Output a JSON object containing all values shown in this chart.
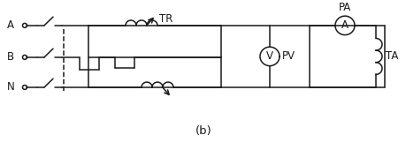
{
  "fig_width": 4.6,
  "fig_height": 1.7,
  "dpi": 100,
  "bg_color": "#ffffff",
  "line_color": "#1a1a1a",
  "line_width": 1.1,
  "label_A": "A",
  "label_B": "B",
  "label_N": "N",
  "label_TR": "TR",
  "label_PA": "PA",
  "label_PV": "PV",
  "label_TA": "TA",
  "label_V": "V",
  "label_A_meter": "A",
  "label_b": "(b)",
  "font_size": 8.5
}
